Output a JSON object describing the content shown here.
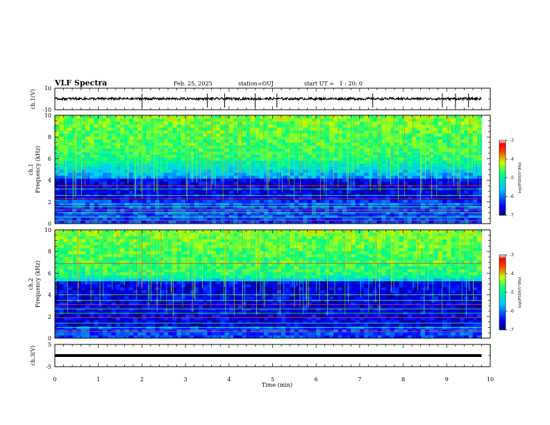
{
  "header": {
    "title": "VLF Spectra",
    "date": "Feb. 25, 2025",
    "station": "station=OUJ",
    "start": "start UT =   1 : 20: 0"
  },
  "colors": {
    "colormap": [
      "#000080",
      "#0000ff",
      "#00c8ff",
      "#00ff80",
      "#c8ff00",
      "#ff8000",
      "#ff0000",
      "#ffffff"
    ],
    "trace": "#000000"
  },
  "chart_data": [
    {
      "type": "line",
      "panel": "ch1-waveform",
      "ylabel": "ch.1(V)",
      "ylim": [
        -10,
        10
      ],
      "yticks": [
        "10",
        "-10"
      ],
      "baseline": 0.2,
      "spikes_x": [
        2.0,
        3.5,
        3.9,
        4.6,
        5.1,
        7.3,
        8.9,
        9.2,
        9.5
      ],
      "x_unit": "min"
    },
    {
      "type": "heatmap",
      "panel": "ch1-spectrogram",
      "ylabel_line1": "ch.1",
      "ylabel_line2": "Frequency (kHz)",
      "ylim": [
        0,
        10
      ],
      "yticks": [
        "10",
        "8",
        "6",
        "4",
        "2",
        "0"
      ],
      "value_label": "log(PSD)(V²/Hz)",
      "zlim": [
        -7,
        -3
      ],
      "zticks": [
        "-3",
        "-4",
        "-5",
        "-6",
        "-7"
      ],
      "x_range_min": [
        0,
        9.8
      ],
      "hum_lines_khz": [
        0.3,
        0.6,
        1.0,
        1.25,
        1.55,
        1.8,
        2.3,
        2.6,
        3.2,
        3.5,
        6.6,
        7.0
      ],
      "dark_band_khz": [
        2.2,
        4.3
      ],
      "bright_band_khz": [
        6.0,
        10.0
      ]
    },
    {
      "type": "heatmap",
      "panel": "ch2-spectrogram",
      "ylabel_line1": "ch.2",
      "ylabel_line2": "Frequency (kHz)",
      "ylim": [
        0,
        10
      ],
      "yticks": [
        "10",
        "8",
        "6",
        "4",
        "2",
        "0"
      ],
      "value_label": "log(PSD)(V²/Hz)",
      "zlim": [
        -7,
        -3
      ],
      "zticks": [
        "-3",
        "-4",
        "-5",
        "-6",
        "-7"
      ],
      "x_range_min": [
        0,
        9.8
      ],
      "hum_lines_khz": [
        0.6,
        1.0,
        1.4,
        1.9,
        2.3,
        2.7,
        3.1,
        3.5,
        4.0,
        6.9,
        8.7
      ],
      "dark_band_khz": [
        1.2,
        5.2
      ],
      "bright_band_khz": [
        5.8,
        10.0
      ]
    },
    {
      "type": "line",
      "panel": "ch3-waveform",
      "ylabel": "ch.3(V)",
      "ylim": [
        -5,
        5
      ],
      "yticks": [
        "5",
        "-5"
      ],
      "baseline": 0.0,
      "x_unit": "min"
    }
  ],
  "xaxis": {
    "label": "Time (min)",
    "ticks": [
      "0",
      "1",
      "2",
      "3",
      "4",
      "5",
      "6",
      "7",
      "8",
      "9",
      "10"
    ],
    "range": [
      0,
      10
    ]
  }
}
